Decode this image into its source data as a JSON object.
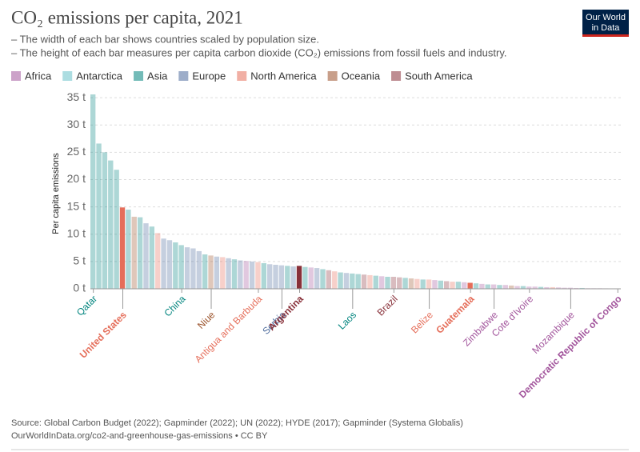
{
  "chart_data": {
    "type": "variwide",
    "title": "CO₂ emissions per capita, 2021",
    "subtitle": [
      "– The width of each bar shows countries scaled by population size.",
      "– The height of each bar measures per capita carbon dioxide (CO₂) emissions from fossil fuels and industry."
    ],
    "y_label": "Per capita emissions",
    "logo": [
      "Our World",
      "in Data"
    ],
    "source": "Source: Global Carbon Budget (2022); Gapminder (2022); UN (2022); HYDE (2017); Gapminder (Systema Globalis)",
    "url": "OurWorldInData.org/co2-and-greenhouse-gas-emissions • CC BY",
    "legend": [
      {
        "name": "Africa",
        "color": "#a2559c"
      },
      {
        "name": "Antarctica",
        "color": "#68c1c9"
      },
      {
        "name": "Asia",
        "color": "#00847e"
      },
      {
        "name": "Europe",
        "color": "#4c6a9c"
      },
      {
        "name": "North America",
        "color": "#e56e5a"
      },
      {
        "name": "Oceania",
        "color": "#9a5129"
      },
      {
        "name": "South America",
        "color": "#883039"
      }
    ],
    "ylim": [
      0,
      35.6
    ],
    "yticks": [
      {
        "value": 0,
        "label": "0 t"
      },
      {
        "value": 5,
        "label": "5 t"
      },
      {
        "value": 10,
        "label": "10 t"
      },
      {
        "value": 15,
        "label": "15 t"
      },
      {
        "value": 20,
        "label": "20 t"
      },
      {
        "value": 25,
        "label": "25 t"
      },
      {
        "value": 30,
        "label": "30 t"
      },
      {
        "value": 35,
        "label": "35 t"
      }
    ],
    "grid": true,
    "highlighted": [
      "United States",
      "Argentina",
      "Guatemala",
      "Democratic Republic of Congo"
    ],
    "categories": [
      "Qatar",
      null,
      null,
      null,
      null,
      "United States",
      null,
      null,
      null,
      null,
      null,
      null,
      null,
      null,
      null,
      "China",
      null,
      null,
      null,
      null,
      "Niue",
      null,
      null,
      null,
      null,
      null,
      null,
      null,
      "Antigua and Barbuda",
      null,
      null,
      null,
      "Serbia",
      null,
      null,
      "Argentina",
      null,
      null,
      null,
      null,
      null,
      null,
      null,
      null,
      "Laos",
      null,
      null,
      null,
      null,
      null,
      null,
      "Brazil",
      null,
      null,
      null,
      null,
      null,
      "Belize",
      null,
      null,
      null,
      null,
      null,
      null,
      "Guatemala",
      null,
      null,
      null,
      "Zimbabwe",
      null,
      null,
      null,
      null,
      null,
      "Cote d'Ivoire",
      null,
      null,
      null,
      null,
      null,
      null,
      "Mozambique",
      null,
      null,
      null,
      null,
      null,
      null,
      null,
      "Democratic Republic of Congo"
    ],
    "values": [
      35.6,
      26.6,
      25.0,
      23.5,
      21.8,
      14.9,
      14.5,
      13.2,
      13.1,
      12.0,
      11.4,
      10.2,
      9.2,
      8.9,
      8.5,
      8.0,
      7.6,
      7.4,
      6.9,
      6.3,
      6.1,
      5.9,
      5.8,
      5.6,
      5.4,
      5.2,
      5.1,
      5.0,
      4.9,
      4.7,
      4.5,
      4.4,
      4.3,
      4.2,
      4.1,
      4.2,
      4.0,
      3.9,
      3.8,
      3.6,
      3.4,
      3.2,
      3.0,
      2.9,
      2.8,
      2.7,
      2.6,
      2.5,
      2.4,
      2.3,
      2.2,
      2.2,
      2.1,
      2.0,
      1.9,
      1.8,
      1.7,
      1.7,
      1.6,
      1.5,
      1.4,
      1.3,
      1.3,
      1.2,
      1.1,
      1.0,
      0.9,
      0.8,
      0.8,
      0.7,
      0.7,
      0.6,
      0.5,
      0.5,
      0.4,
      0.4,
      0.35,
      0.3,
      0.3,
      0.25,
      0.2,
      0.2,
      0.15,
      0.15,
      0.1,
      0.1,
      0.1,
      0.08,
      0.06,
      0.03
    ],
    "region": [
      "Asia",
      "Asia",
      "Asia",
      "Asia",
      "Asia",
      "North America",
      "Asia",
      "Oceania",
      "Asia",
      "Europe",
      "Asia",
      "North America",
      "Europe",
      "Europe",
      "Asia",
      "Asia",
      "Europe",
      "Europe",
      "Europe",
      "Asia",
      "Oceania",
      "Europe",
      "North America",
      "Europe",
      "Asia",
      "Europe",
      "Africa",
      "Europe",
      "North America",
      "Asia",
      "Europe",
      "Europe",
      "Europe",
      "Asia",
      "Europe",
      "South America",
      "Asia",
      "Africa",
      "Europe",
      "Asia",
      "South America",
      "North America",
      "Asia",
      "Europe",
      "Asia",
      "Asia",
      "South America",
      "North America",
      "Asia",
      "Africa",
      "Asia",
      "South America",
      "South America",
      "Asia",
      "Oceania",
      "North America",
      "Asia",
      "North America",
      "Africa",
      "Asia",
      "South America",
      "North America",
      "Asia",
      "Africa",
      "North America",
      "Asia",
      "Africa",
      "Asia",
      "Africa",
      "Asia",
      "Africa",
      "Oceania",
      "Africa",
      "Asia",
      "Africa",
      "Africa",
      "Asia",
      "Africa",
      "North America",
      "Africa",
      "Africa",
      "Africa",
      "Africa",
      "Asia",
      "Africa",
      "Africa",
      "Africa",
      "Africa",
      "Africa",
      "Africa"
    ]
  }
}
